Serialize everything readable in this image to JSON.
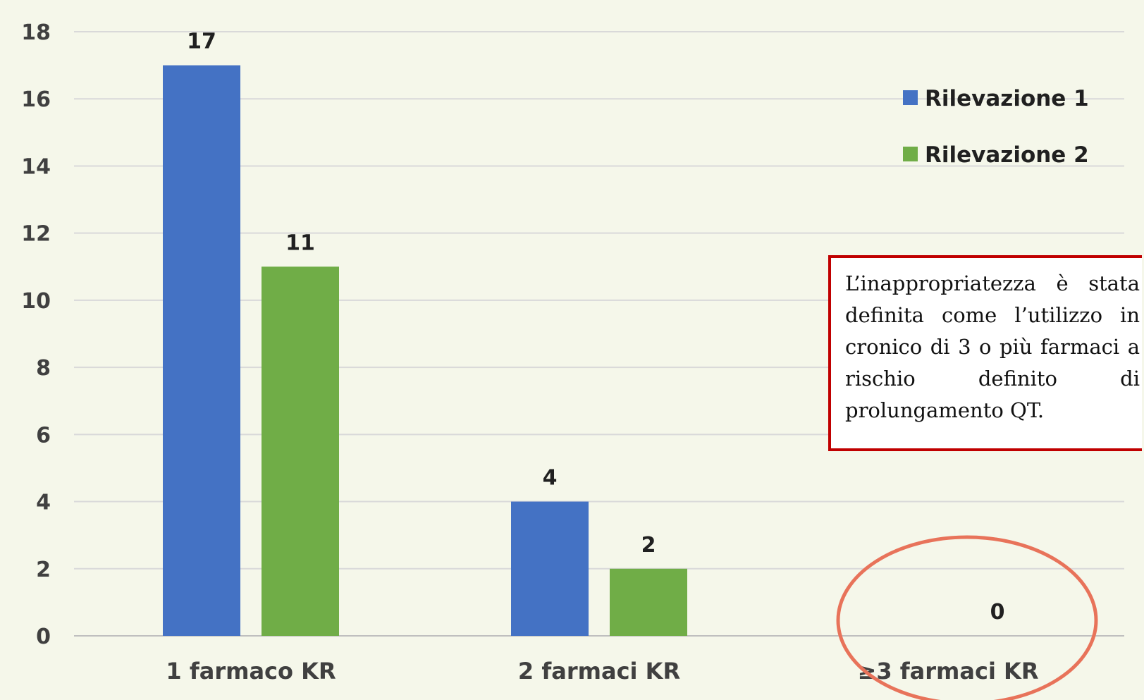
{
  "chart_data": {
    "type": "bar",
    "categories": [
      "1 farmaco KR",
      "2 farmaci KR",
      "≥3 farmaci KR"
    ],
    "series": [
      {
        "name": "Rilevazione 1",
        "values": [
          17,
          4,
          0
        ],
        "color": "#4472c4",
        "labels": [
          "17",
          "4",
          ""
        ]
      },
      {
        "name": "Rilevazione 2",
        "values": [
          11,
          2,
          0
        ],
        "color": "#70ad47",
        "labels": [
          "11",
          "2",
          "0"
        ]
      }
    ],
    "yticks": [
      "0",
      "2",
      "4",
      "6",
      "8",
      "10",
      "12",
      "14",
      "16",
      "18"
    ],
    "ylim": [
      0,
      18
    ],
    "grid": true,
    "legend": "right",
    "highlight": {
      "category": "≥3 farmaci KR",
      "shape": "ellipse",
      "color": "#e8735a"
    }
  },
  "note": {
    "text": "L’inappropriatezza è stata definita come l’utilizzo in cronico di 3 o più farmaci a rischio definito di prolungamento QT.",
    "border_color": "#c00000"
  }
}
